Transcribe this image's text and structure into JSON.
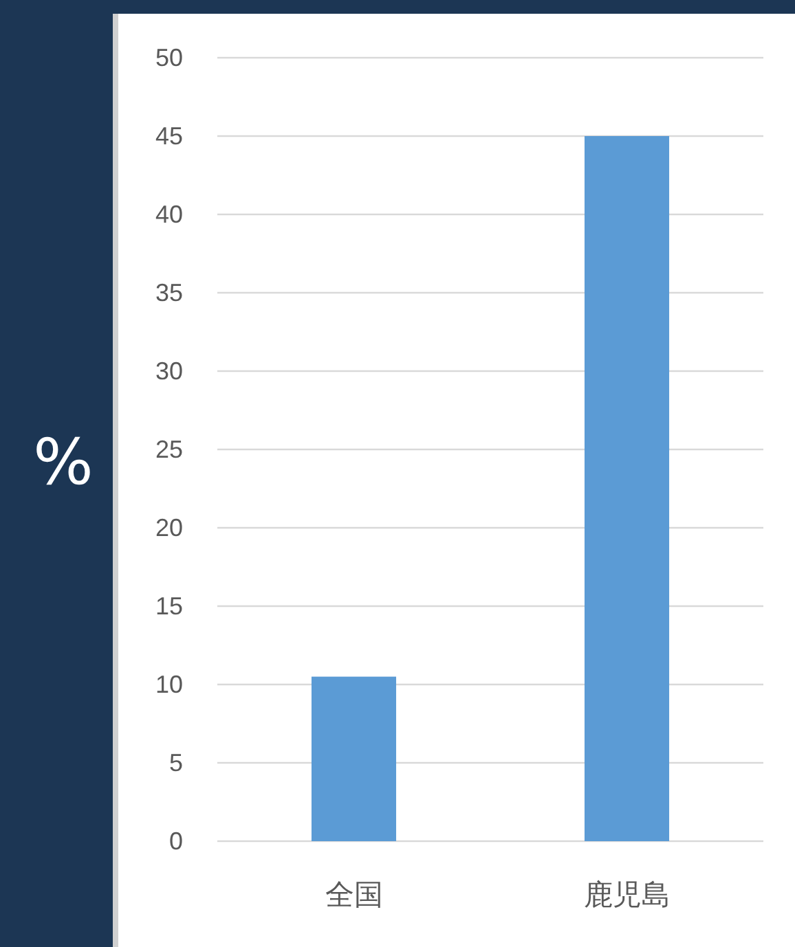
{
  "chart_data": {
    "type": "bar",
    "ylabel": "%",
    "categories": [
      "全国",
      "鹿児島"
    ],
    "values": [
      10.5,
      45
    ],
    "color": "#5b9bd5",
    "ylim": [
      0,
      50
    ],
    "yticks": [
      0,
      5,
      10,
      15,
      20,
      25,
      30,
      35,
      40,
      45,
      50
    ],
    "grid": "y"
  }
}
